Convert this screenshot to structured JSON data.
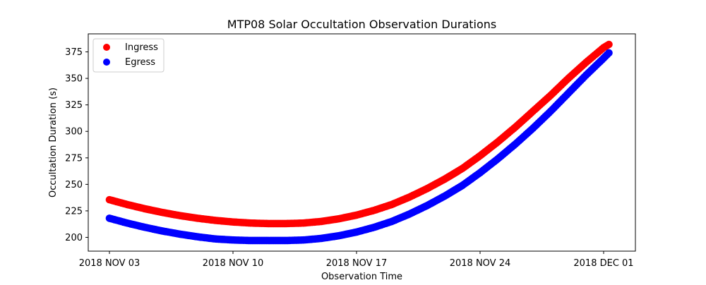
{
  "chart_data": {
    "type": "scatter",
    "title": "MTP08 Solar Occultation Observation Durations",
    "xlabel": "Observation Time",
    "ylabel": "Occultation Duration (s)",
    "x_unit": "days since 2018 NOV 03",
    "xlim": [
      -1.2,
      29.8
    ],
    "ylim": [
      187,
      392
    ],
    "xticks": [
      {
        "value": 0,
        "label": "2018 NOV 03"
      },
      {
        "value": 7,
        "label": "2018 NOV 10"
      },
      {
        "value": 14,
        "label": "2018 NOV 17"
      },
      {
        "value": 21,
        "label": "2018 NOV 24"
      },
      {
        "value": 28,
        "label": "2018 DEC 01"
      }
    ],
    "yticks": [
      200,
      225,
      250,
      275,
      300,
      325,
      350,
      375
    ],
    "grid": false,
    "legend": {
      "placement": "top-left",
      "entries": [
        "Ingress",
        "Egress"
      ]
    },
    "series": [
      {
        "name": "Ingress",
        "color": "#ff0000",
        "x": [
          0,
          1,
          2,
          3,
          4,
          5,
          6,
          7,
          8,
          9,
          10,
          11,
          12,
          13,
          14,
          15,
          16,
          17,
          18,
          19,
          20,
          21,
          22,
          23,
          24,
          25,
          26,
          27,
          28,
          28.3
        ],
        "values": [
          235.5,
          231,
          227,
          223.5,
          220.5,
          218,
          216,
          214.5,
          213.5,
          213,
          213,
          213.5,
          215,
          217.5,
          221,
          225.5,
          231,
          238,
          246,
          255,
          265,
          277,
          290,
          304,
          319,
          334,
          350,
          365,
          379,
          382
        ]
      },
      {
        "name": "Egress",
        "color": "#0000ff",
        "x": [
          0,
          1,
          2,
          3,
          4,
          5,
          6,
          7,
          8,
          9,
          10,
          11,
          12,
          13,
          14,
          15,
          16,
          17,
          18,
          19,
          20,
          21,
          22,
          23,
          24,
          25,
          26,
          27,
          28,
          28.3
        ],
        "values": [
          218,
          213.5,
          209.5,
          206,
          203,
          200.5,
          198.5,
          197.5,
          197,
          197,
          197,
          197.5,
          199,
          201.5,
          205,
          209.5,
          215,
          222,
          230,
          239,
          249,
          261,
          274,
          288,
          303,
          319,
          336,
          353,
          369,
          374
        ]
      }
    ]
  }
}
